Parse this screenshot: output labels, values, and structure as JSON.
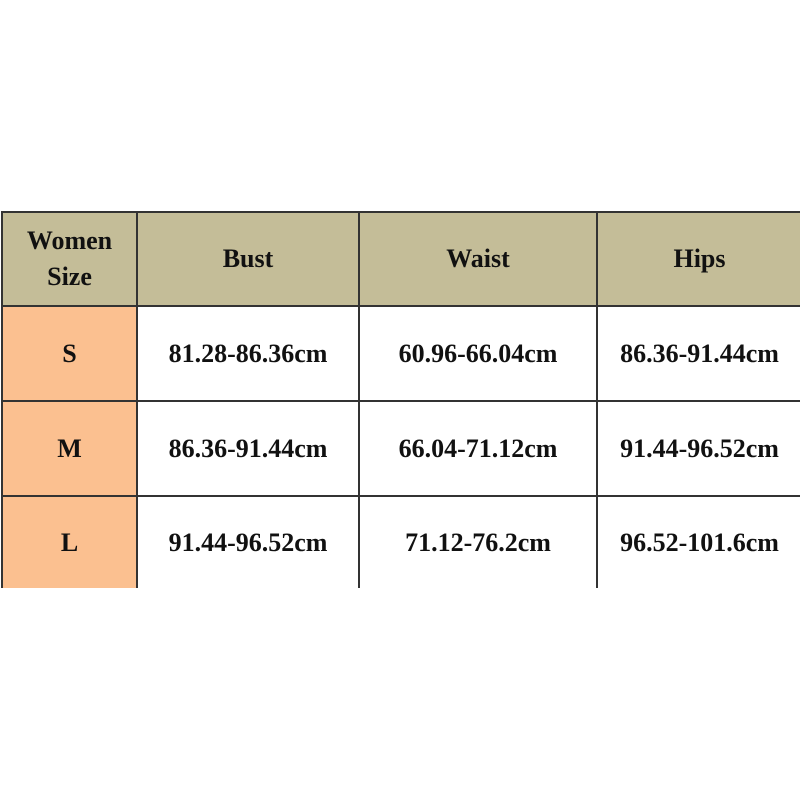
{
  "colors": {
    "header": "#c4bd98",
    "size_column": "#fbc090",
    "border": "#333333"
  },
  "table": {
    "headers": [
      "Women Size",
      "Bust",
      "Waist",
      "Hips"
    ],
    "header_lines": [
      "Women",
      "Size"
    ],
    "rows": [
      {
        "size": "S",
        "bust": "81.28-86.36cm",
        "waist": "60.96-66.04cm",
        "hips": "86.36-91.44cm"
      },
      {
        "size": "M",
        "bust": "86.36-91.44cm",
        "waist": "66.04-71.12cm",
        "hips": "91.44-96.52cm"
      },
      {
        "size": "L",
        "bust": "91.44-96.52cm",
        "waist": "71.12-76.2cm",
        "hips": "96.52-101.6cm"
      }
    ]
  }
}
